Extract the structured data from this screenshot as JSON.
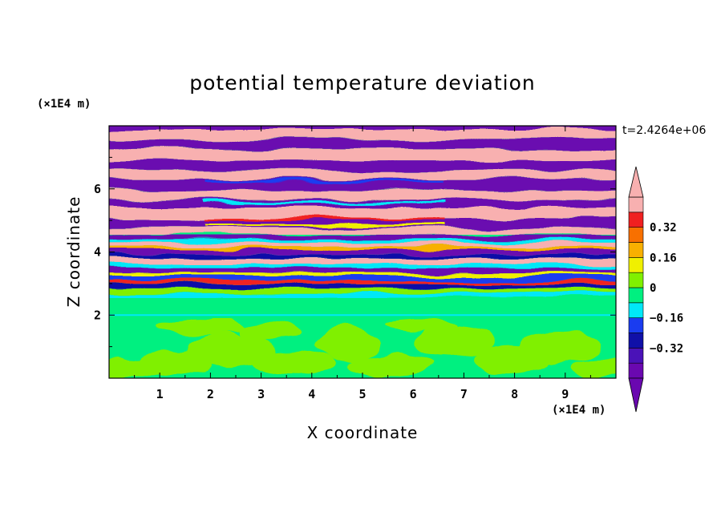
{
  "chart_data": {
    "type": "heatmap",
    "title": "potential temperature deviation",
    "xlabel": "X coordinate",
    "ylabel": "Z coordinate",
    "x_unit": "(×1E4 m)",
    "y_unit": "(×1E4 m)",
    "time_label": "t=2.4264e+06",
    "xlim": [
      0,
      10
    ],
    "ylim": [
      0,
      8
    ],
    "x_ticks": [
      1,
      2,
      3,
      4,
      5,
      6,
      7,
      8,
      9
    ],
    "y_ticks": [
      2,
      4,
      6
    ],
    "colorbar": {
      "levels": [
        -0.48,
        -0.4,
        -0.32,
        -0.24,
        -0.16,
        -0.08,
        0,
        0.08,
        0.16,
        0.24,
        0.32,
        0.4,
        0.48
      ],
      "colors": [
        "#6a08b0",
        "#4a12b8",
        "#1010a8",
        "#1a3cf0",
        "#00e8f8",
        "#00f080",
        "#80f000",
        "#f0f000",
        "#f8b000",
        "#f87000",
        "#f02020",
        "#f8b0b0"
      ],
      "under_color": "#6a08b0",
      "over_color": "#f8b0b0",
      "tick_labels": [
        "0.32",
        "0.16",
        "0",
        "−0.16",
        "−0.32"
      ],
      "tick_values": [
        0.32,
        0.16,
        0,
        -0.16,
        -0.32
      ]
    },
    "field_description": [
      {
        "z_range": [
          0,
          2
        ],
        "dominant": "light positive (green) with yellow-green eddies"
      },
      {
        "z_range": [
          2,
          2.5
        ],
        "dominant": "near zero (green) band"
      },
      {
        "z_range": [
          2.5,
          4.5
        ],
        "dominant": "mixed alternating bands with cyan/blue/red/yellow streaks"
      },
      {
        "z_range": [
          4.5,
          8
        ],
        "dominant": "alternating strong negative (purple) and strong positive (pink) layers"
      }
    ]
  }
}
